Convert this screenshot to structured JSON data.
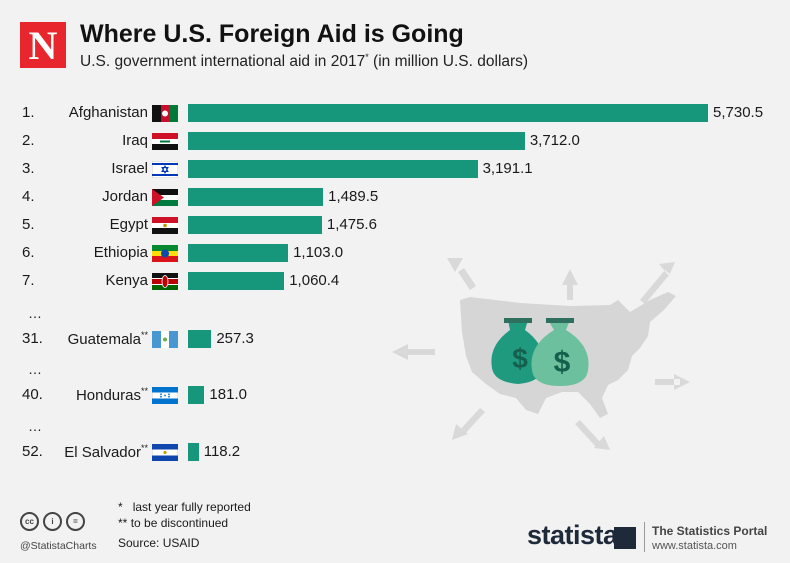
{
  "header": {
    "logo_letter": "N",
    "title": "Where U.S. Foreign Aid is Going",
    "subtitle_pre": "U.S. government international aid in 2017",
    "subtitle_mark": "*",
    "subtitle_post": " (in million U.S. dollars)"
  },
  "chart_data": {
    "type": "bar",
    "orientation": "horizontal",
    "bar_color": "#16967b",
    "rows": [
      {
        "rank": "1.",
        "name": "Afghanistan",
        "mark": "",
        "value": 5730.5,
        "label": "5,730.5",
        "flag": "afghanistan"
      },
      {
        "rank": "2.",
        "name": "Iraq",
        "mark": "",
        "value": 3712.0,
        "label": "3,712.0",
        "flag": "iraq"
      },
      {
        "rank": "3.",
        "name": "Israel",
        "mark": "",
        "value": 3191.1,
        "label": "3,191.1",
        "flag": "israel"
      },
      {
        "rank": "4.",
        "name": "Jordan",
        "mark": "",
        "value": 1489.5,
        "label": "1,489.5",
        "flag": "jordan"
      },
      {
        "rank": "5.",
        "name": "Egypt",
        "mark": "",
        "value": 1475.6,
        "label": "1,475.6",
        "flag": "egypt"
      },
      {
        "rank": "6.",
        "name": "Ethiopia",
        "mark": "",
        "value": 1103.0,
        "label": "1,103.0",
        "flag": "ethiopia"
      },
      {
        "rank": "7.",
        "name": "Kenya",
        "mark": "",
        "value": 1060.4,
        "label": "1,060.4",
        "flag": "kenya"
      },
      {
        "rank": "31.",
        "name": "Guatemala",
        "mark": "**",
        "value": 257.3,
        "label": "257.3",
        "flag": "guatemala"
      },
      {
        "rank": "40.",
        "name": "Honduras",
        "mark": "**",
        "value": 181.0,
        "label": "181.0",
        "flag": "honduras"
      },
      {
        "rank": "52.",
        "name": "El Salvador",
        "mark": "**",
        "value": 118.2,
        "label": "118.2",
        "flag": "elsalvador"
      }
    ],
    "ellipsis": "…"
  },
  "footer": {
    "note1_mark": "*",
    "note1_text": "last year fully reported",
    "note2_mark": "**",
    "note2_text": "to be discontinued",
    "source": "Source: USAID",
    "handle": "@StatistaCharts",
    "brand": "statista",
    "portal": "The Statistics Portal",
    "portal_url": "www.statista.com"
  },
  "illustration": {
    "icons": [
      "usa-map-icon",
      "money-bag-icon",
      "dollar-sign-icon",
      "arrow-icon"
    ],
    "dollar_glyph": "$"
  }
}
